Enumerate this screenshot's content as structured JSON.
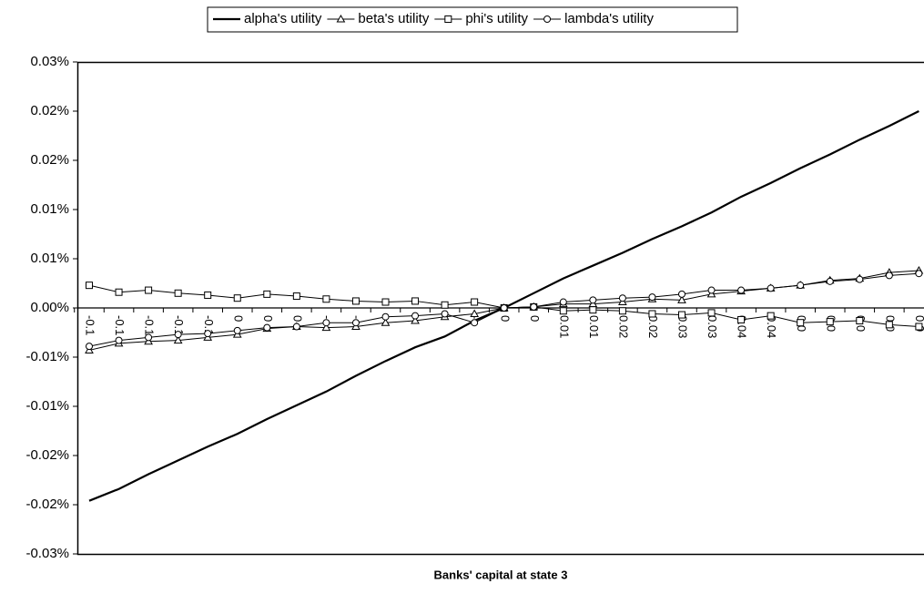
{
  "chart_data": {
    "type": "line",
    "x_label": "Banks' capital at state 3",
    "categories": [
      "-0.1",
      "-0.1",
      "-0.1",
      "-0.1",
      "-0.1",
      "0",
      "0",
      "0",
      "-",
      "-",
      "-",
      "-",
      "-",
      "-",
      "0",
      "0",
      "0.01",
      "0.01",
      "0.02",
      "0.02",
      "0.03",
      "0.03",
      "0.04",
      "0.04",
      "0.0",
      "0.0",
      "0.0",
      "0.0",
      "0.0"
    ],
    "ylim": [
      -0.025,
      0.025
    ],
    "yticks": [
      {
        "value": -0.025,
        "label": "-0.03%"
      },
      {
        "value": -0.02,
        "label": "-0.02%"
      },
      {
        "value": -0.015,
        "label": "-0.02%"
      },
      {
        "value": -0.01,
        "label": "-0.01%"
      },
      {
        "value": -0.005,
        "label": "-0.01%"
      },
      {
        "value": 0,
        "label": "0.00%"
      },
      {
        "value": 0.005,
        "label": "0.01%"
      },
      {
        "value": 0.01,
        "label": "0.01%"
      },
      {
        "value": 0.015,
        "label": "0.02%"
      },
      {
        "value": 0.02,
        "label": "0.02%"
      },
      {
        "value": 0.025,
        "label": "0.03%"
      }
    ],
    "grid": false,
    "legend": "top",
    "series": [
      {
        "name": "alpha's utility",
        "color": "#000000",
        "marker": "none",
        "values": [
          -0.0196,
          -0.0184,
          -0.0169,
          -0.0155,
          -0.0141,
          -0.0128,
          -0.0113,
          -0.0099,
          -0.0085,
          -0.0069,
          -0.0054,
          -0.004,
          -0.0029,
          -0.0013,
          0,
          0.0015,
          0.003,
          0.0043,
          0.0056,
          0.007,
          0.0083,
          0.0097,
          0.0113,
          0.0127,
          0.0142,
          0.0156,
          0.0171,
          0.0185,
          0.02
        ]
      },
      {
        "name": "beta's utility",
        "color": "#000000",
        "marker": "triangle",
        "values": [
          -0.0043,
          -0.0036,
          -0.0034,
          -0.0033,
          -0.003,
          -0.0027,
          -0.0021,
          -0.0019,
          -0.002,
          -0.0019,
          -0.0015,
          -0.0013,
          -0.0009,
          -0.0006,
          0,
          0.0001,
          0.0004,
          0.0004,
          0.0006,
          0.0009,
          0.0008,
          0.0014,
          0.0017,
          0.002,
          0.0023,
          0.0028,
          0.003,
          0.0036,
          0.0038
        ]
      },
      {
        "name": "phi's utility",
        "color": "#000000",
        "marker": "square",
        "values": [
          0.0023,
          0.0016,
          0.0018,
          0.0015,
          0.0013,
          0.001,
          0.0014,
          0.0012,
          0.0009,
          0.0007,
          0.0006,
          0.0007,
          0.0003,
          0.0006,
          0,
          0.0001,
          -0.0003,
          -0.0002,
          -0.0003,
          -0.0006,
          -0.0007,
          -0.0005,
          -0.0012,
          -0.0008,
          -0.0015,
          -0.0014,
          -0.0013,
          -0.0017,
          -0.0019
        ]
      },
      {
        "name": "lambda's utility",
        "color": "#000000",
        "marker": "circle",
        "values": [
          -0.0039,
          -0.0033,
          -0.003,
          -0.0027,
          -0.0026,
          -0.0023,
          -0.002,
          -0.0019,
          -0.0015,
          -0.0015,
          -0.0009,
          -0.0008,
          -0.0006,
          -0.0015,
          0,
          0.0001,
          0.0006,
          0.0008,
          0.001,
          0.0011,
          0.0014,
          0.0018,
          0.0018,
          0.002,
          0.0023,
          0.0027,
          0.0029,
          0.0033,
          0.0035
        ]
      }
    ]
  }
}
